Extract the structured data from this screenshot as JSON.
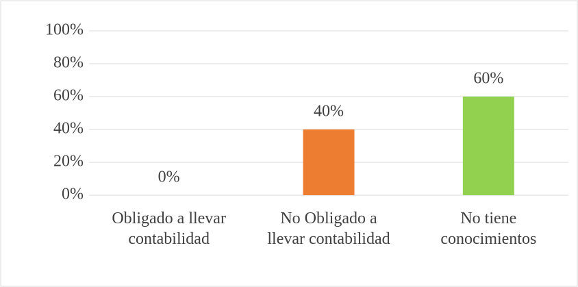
{
  "chart_data": {
    "type": "bar",
    "categories": [
      "Obligado a llevar contabilidad",
      "No Obligado a llevar contabilidad",
      "No tiene conocimientos"
    ],
    "values": [
      0,
      40,
      60
    ],
    "value_labels": [
      "0%",
      "40%",
      "60%"
    ],
    "colors": [
      "#4472c4",
      "#ed7d31",
      "#92d050"
    ],
    "ylim": [
      0,
      100
    ],
    "yticks": [
      {
        "value": 0,
        "label": "0%"
      },
      {
        "value": 20,
        "label": "20%"
      },
      {
        "value": 40,
        "label": "40%"
      },
      {
        "value": 60,
        "label": "60%"
      },
      {
        "value": 80,
        "label": "80%"
      },
      {
        "value": 100,
        "label": "100%"
      }
    ],
    "grid": true
  }
}
